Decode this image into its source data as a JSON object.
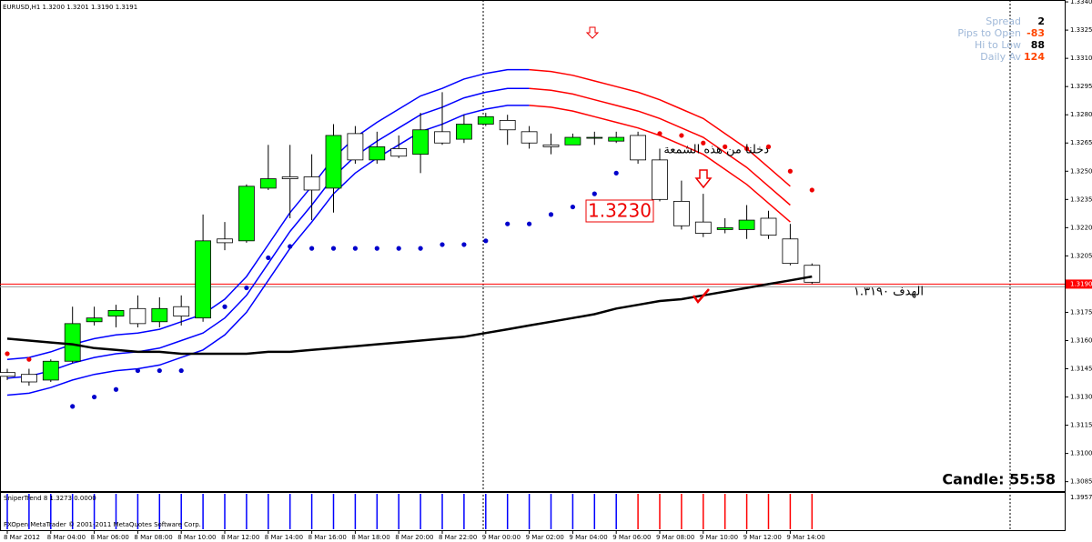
{
  "header": "EURUSD,H1  1.3200 1.3201 1.3190 1.3191",
  "chart_data": {
    "type": "candlestick",
    "categories": [
      "8 Mar 2012",
      null,
      "8 Mar 04:00",
      null,
      "8 Mar 06:00",
      null,
      "8 Mar 08:00",
      null,
      "8 Mar 10:00",
      null,
      "8 Mar 12:00",
      null,
      "8 Mar 14:00",
      null,
      "8 Mar 16:00",
      null,
      "8 Mar 18:00",
      null,
      "8 Mar 20:00",
      null,
      "8 Mar 22:00",
      null,
      "9 Mar 00:00",
      null,
      "9 Mar 02:00",
      null,
      "9 Mar 04:00",
      null,
      "9 Mar 06:00",
      null,
      "9 Mar 08:00",
      null,
      "9 Mar 10:00",
      null,
      "9 Mar 12:00",
      null,
      "9 Mar 14:00",
      null
    ],
    "open": [
      1.3143,
      1.3142,
      1.3139,
      1.3149,
      1.317,
      1.3173,
      1.3177,
      1.317,
      1.3178,
      1.3172,
      1.3214,
      1.3213,
      1.3241,
      1.3247,
      1.3247,
      1.3241,
      1.327,
      1.3256,
      1.3262,
      1.3259,
      1.3271,
      1.3267,
      1.3275,
      1.3277,
      1.3271,
      1.3264,
      1.3264,
      1.3268,
      1.3266,
      1.3269,
      1.3256,
      1.3234,
      1.3223,
      1.3219,
      1.3219,
      1.3225,
      1.3214,
      1.32
    ],
    "high": [
      1.3145,
      1.3145,
      1.315,
      1.3178,
      1.3178,
      1.3179,
      1.3184,
      1.3183,
      1.3184,
      1.3227,
      1.3223,
      1.3243,
      1.3264,
      1.3264,
      1.3259,
      1.3275,
      1.3274,
      1.3271,
      1.3269,
      1.3281,
      1.3292,
      1.328,
      1.3281,
      1.328,
      1.3274,
      1.327,
      1.327,
      1.3271,
      1.3271,
      1.3271,
      1.3262,
      1.3245,
      1.3238,
      1.3225,
      1.3232,
      1.3229,
      1.3222,
      1.3201
    ],
    "low": [
      1.3139,
      1.3136,
      1.3138,
      1.3148,
      1.3168,
      1.3167,
      1.3167,
      1.3167,
      1.3168,
      1.317,
      1.3208,
      1.3212,
      1.324,
      1.3225,
      1.3224,
      1.3228,
      1.3254,
      1.3254,
      1.3257,
      1.3249,
      1.3264,
      1.3265,
      1.3274,
      1.3264,
      1.3262,
      1.3259,
      1.3264,
      1.3264,
      1.3265,
      1.3254,
      1.3234,
      1.3219,
      1.3215,
      1.3217,
      1.3214,
      1.3214,
      1.32,
      1.319
    ],
    "close": [
      1.3141,
      1.3138,
      1.3149,
      1.3169,
      1.3172,
      1.3176,
      1.3169,
      1.3177,
      1.3173,
      1.3213,
      1.3212,
      1.3242,
      1.3246,
      1.3246,
      1.324,
      1.3269,
      1.3256,
      1.3263,
      1.3258,
      1.3272,
      1.3265,
      1.3275,
      1.3279,
      1.3272,
      1.3265,
      1.3263,
      1.3268,
      1.3268,
      1.3268,
      1.3256,
      1.3235,
      1.3221,
      1.3217,
      1.322,
      1.3224,
      1.3216,
      1.3201,
      1.3191
    ],
    "up_color": "#00ff00",
    "down_color": "#ffffff",
    "ylim": [
      1.308,
      1.3341
    ],
    "yticks": [
      {
        "value": 1.334,
        "label": "1.3340"
      },
      1.3325,
      {
        "value": 1.331,
        "label": "1.3310"
      },
      1.3295,
      {
        "value": 1.328,
        "label": "1.3280"
      },
      1.3265,
      {
        "value": 1.325,
        "label": "1.3250"
      },
      1.3235,
      {
        "value": 1.322,
        "label": "1.3220"
      },
      1.3205,
      1.3175,
      {
        "value": 1.316,
        "label": "1.3160"
      },
      1.3145,
      {
        "value": 1.313,
        "label": "1.3130"
      },
      1.3115,
      {
        "value": 1.31,
        "label": "1.3100"
      },
      1.3085
    ],
    "price_line": {
      "value": 1.319,
      "label": "1.3190",
      "color": "#ff0000"
    },
    "series": [
      {
        "type": "line",
        "color": "#000000",
        "width": 2.5,
        "values": [
          1.3161,
          1.316,
          1.3159,
          1.3158,
          1.3156,
          1.3155,
          1.3154,
          1.3154,
          1.3153,
          1.3153,
          1.3153,
          1.3153,
          1.3154,
          1.3154,
          1.3155,
          1.3156,
          1.3157,
          1.3158,
          1.3159,
          1.316,
          1.3161,
          1.3162,
          1.3164,
          1.3166,
          1.3168,
          1.317,
          1.3172,
          1.3174,
          1.3177,
          1.3179,
          1.3181,
          1.3182,
          1.3184,
          1.3186,
          1.3188,
          1.319,
          1.3192,
          1.3194
        ]
      },
      {
        "type": "line",
        "color": "#0000ff",
        "width": 1.5,
        "values": [
          1.315,
          1.3151,
          1.3154,
          1.3158,
          1.3161,
          1.3163,
          1.3164,
          1.3166,
          1.317,
          1.3174,
          1.3182,
          1.3194,
          1.3211,
          1.3228,
          1.3242,
          1.3257,
          1.3268,
          1.3276,
          1.3283,
          1.329,
          1.3294,
          1.3299,
          1.3302,
          1.3304,
          1.3304,
          null,
          null,
          null,
          null,
          null,
          null,
          null,
          null,
          null,
          null,
          null,
          null,
          null
        ]
      },
      {
        "type": "line",
        "color": "#0000ff",
        "width": 1.5,
        "values": [
          1.314,
          1.3141,
          1.3144,
          1.3148,
          1.3151,
          1.3153,
          1.3154,
          1.3156,
          1.316,
          1.3164,
          1.3172,
          1.3184,
          1.3201,
          1.3218,
          1.3232,
          1.3247,
          1.3258,
          1.3266,
          1.3273,
          1.328,
          1.3284,
          1.3289,
          1.3292,
          1.3294,
          1.3294,
          null,
          null,
          null,
          null,
          null,
          null,
          null,
          null,
          null,
          null,
          null,
          null,
          null
        ]
      },
      {
        "type": "line",
        "color": "#0000ff",
        "width": 1.5,
        "values": [
          1.3131,
          1.3132,
          1.3135,
          1.3139,
          1.3142,
          1.3144,
          1.3145,
          1.3147,
          1.3151,
          1.3155,
          1.3163,
          1.3175,
          1.3192,
          1.3209,
          1.3223,
          1.3238,
          1.3249,
          1.3257,
          1.3264,
          1.3271,
          1.3275,
          1.328,
          1.3283,
          1.3285,
          1.3285,
          null,
          null,
          null,
          null,
          null,
          null,
          null,
          null,
          null,
          null,
          null,
          null,
          null
        ]
      },
      {
        "type": "line",
        "color": "#ff0000",
        "width": 1.5,
        "values": [
          null,
          null,
          null,
          null,
          null,
          null,
          null,
          null,
          null,
          null,
          null,
          null,
          null,
          null,
          null,
          null,
          null,
          null,
          null,
          null,
          null,
          null,
          null,
          null,
          1.3304,
          1.3303,
          1.3301,
          1.3298,
          1.3295,
          1.3292,
          1.3288,
          1.3283,
          1.3278,
          1.327,
          1.3262,
          1.3252,
          1.3242,
          null
        ]
      },
      {
        "type": "line",
        "color": "#ff0000",
        "width": 1.5,
        "values": [
          null,
          null,
          null,
          null,
          null,
          null,
          null,
          null,
          null,
          null,
          null,
          null,
          null,
          null,
          null,
          null,
          null,
          null,
          null,
          null,
          null,
          null,
          null,
          null,
          1.3294,
          1.3293,
          1.3291,
          1.3288,
          1.3285,
          1.3282,
          1.3278,
          1.3273,
          1.3268,
          1.326,
          1.3252,
          1.3242,
          1.3232,
          null
        ]
      },
      {
        "type": "line",
        "color": "#ff0000",
        "width": 1.5,
        "values": [
          null,
          null,
          null,
          null,
          null,
          null,
          null,
          null,
          null,
          null,
          null,
          null,
          null,
          null,
          null,
          null,
          null,
          null,
          null,
          null,
          null,
          null,
          null,
          null,
          1.3285,
          1.3284,
          1.3282,
          1.3279,
          1.3276,
          1.3273,
          1.3269,
          1.3264,
          1.3259,
          1.3251,
          1.3243,
          1.3233,
          1.3223,
          null
        ]
      },
      {
        "type": "dots",
        "color": "#0000cc",
        "values": [
          null,
          null,
          null,
          1.3125,
          1.313,
          1.3134,
          1.3144,
          1.3144,
          1.3144,
          null,
          1.3178,
          1.3188,
          1.3204,
          1.321,
          1.3209,
          1.3209,
          1.3209,
          1.3209,
          1.3209,
          1.3209,
          1.3211,
          1.3211,
          1.3213,
          1.3222,
          1.3222,
          1.3227,
          1.3231,
          1.3238,
          1.3249,
          null,
          null,
          null,
          null,
          null,
          null,
          null,
          null,
          null
        ]
      },
      {
        "type": "dots",
        "color": "#ee0000",
        "values": [
          1.3153,
          1.315,
          null,
          null,
          null,
          null,
          null,
          null,
          null,
          null,
          null,
          null,
          null,
          null,
          null,
          null,
          null,
          null,
          null,
          null,
          null,
          null,
          null,
          null,
          null,
          null,
          null,
          null,
          null,
          null,
          1.327,
          1.3269,
          1.3265,
          1.3263,
          1.3262,
          1.3263,
          1.325,
          1.324
        ]
      }
    ],
    "indicator": {
      "label": "SniperTrend 8 1.3273 0.0000",
      "scale_label": "1.3957",
      "colors": [
        "#0000ff",
        "#0000ff",
        "#0000ff",
        "#0000ff",
        "#0000ff",
        "#0000ff",
        "#0000ff",
        "#0000ff",
        "#0000ff",
        "#0000ff",
        "#0000ff",
        "#0000ff",
        "#0000ff",
        "#0000ff",
        "#0000ff",
        "#0000ff",
        "#0000ff",
        "#0000ff",
        "#0000ff",
        "#0000ff",
        "#0000ff",
        "#0000ff",
        "#0000ff",
        "#0000ff",
        "#0000ff",
        "#0000ff",
        "#0000ff",
        "#0000ff",
        "#0000ff",
        "#ff0000",
        "#ff0000",
        "#ff0000",
        "#ff0000",
        "#ff0000",
        "#ff0000",
        "#ff0000",
        "#ff0000",
        "#ff0000"
      ]
    }
  },
  "info": [
    {
      "label": "Spread",
      "value": 2,
      "color": "#000000"
    },
    {
      "label": "Pips to Open",
      "value": -83,
      "color": "#ff4500"
    },
    {
      "label": "Hi to Low",
      "value": 88,
      "color": "#000000"
    },
    {
      "label": "Daily Av",
      "value": 124,
      "color": "#ff4500"
    }
  ],
  "annotations": {
    "price_box": "1.3230",
    "entry_note": "دخلنا من هذه الشمعة",
    "target_note": "الهدف ١.٣١٩٠",
    "candle_timer": "Candle:  55:58"
  },
  "footer": "FXOpen MetaTrader © 2001-2011 MetaQuotes Software Corp."
}
